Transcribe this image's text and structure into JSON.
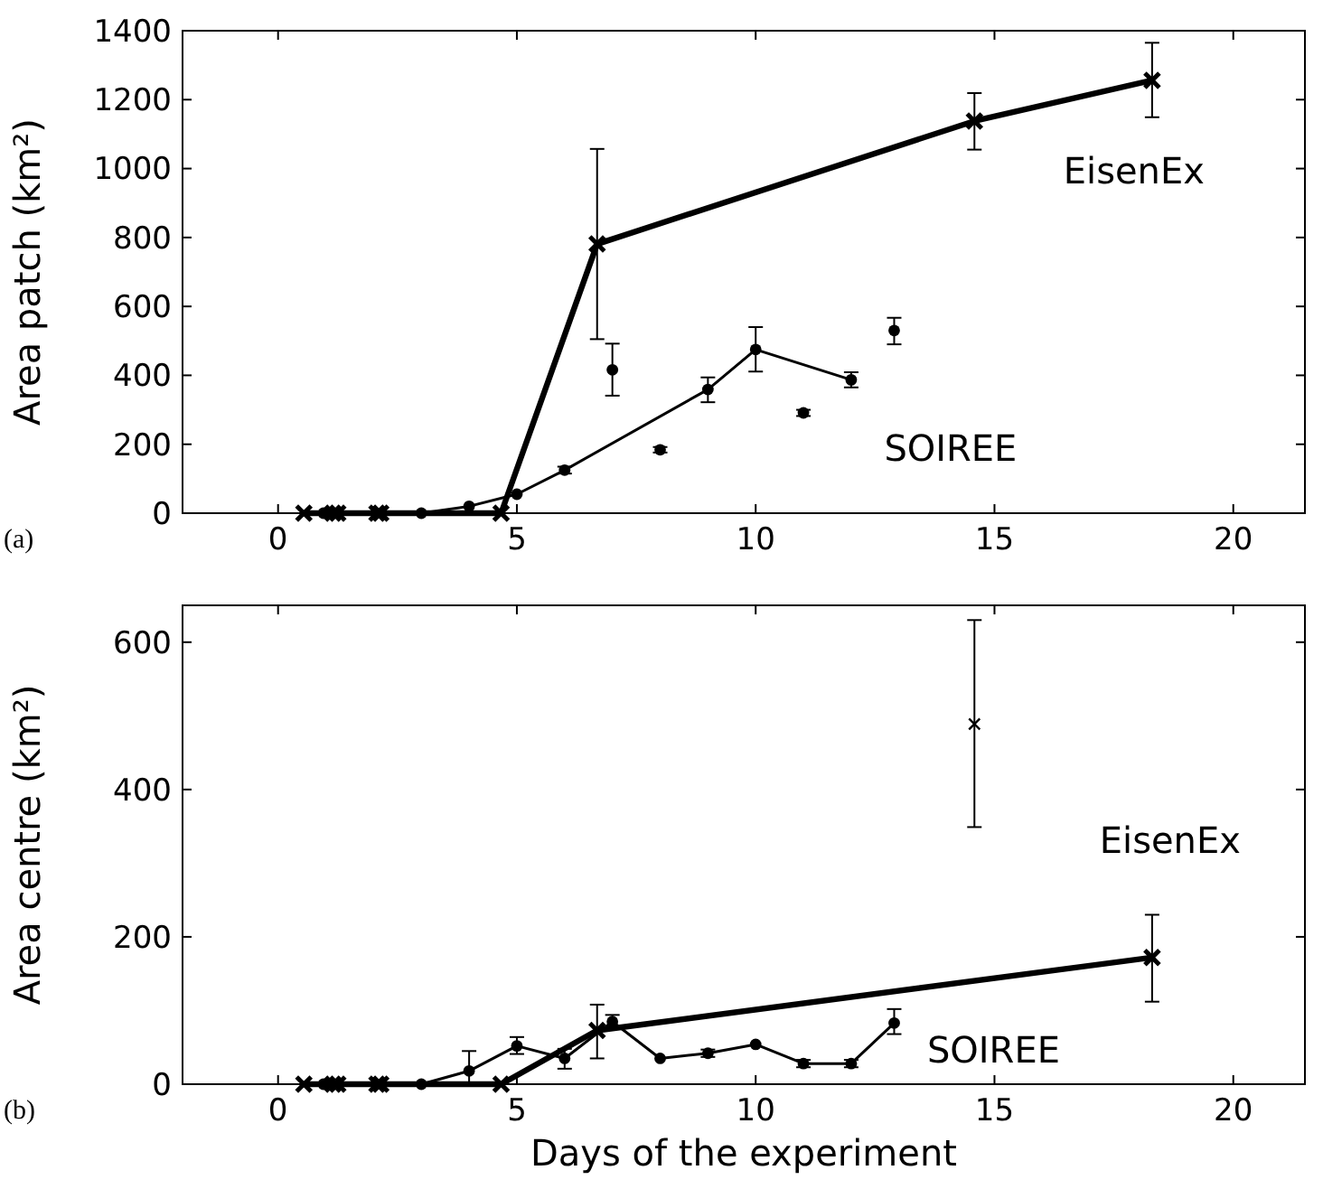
{
  "chart_data": [
    {
      "type": "line",
      "ylabel": "Area patch (km²)",
      "annotations": [
        "(a)"
      ],
      "xlim": [
        -2,
        21.5
      ],
      "xticks": [
        0,
        5,
        10,
        15,
        20
      ],
      "ylim": [
        0,
        1400
      ],
      "yticks": [
        0,
        200,
        400,
        600,
        800,
        1000,
        1200,
        1400
      ],
      "grid": false,
      "series": [
        {
          "name": "EisenEx",
          "color": "#000000",
          "marker": "cross",
          "x": [
            0.54,
            1.15,
            1.25,
            2.07,
            2.15,
            4.67,
            6.68,
            14.58,
            18.3
          ],
          "values": [
            0,
            0,
            0,
            0,
            0,
            0,
            781,
            1138,
            1256
          ],
          "errors": [
            null,
            null,
            null,
            null,
            null,
            null,
            [
              505,
              1057
            ],
            [
              1055,
              1219
            ],
            [
              1149,
              1365
            ]
          ]
        },
        {
          "name": "SOIREE",
          "color": "#000000",
          "marker": "circle",
          "x": [
            0.95,
            3,
            4,
            5,
            6,
            9,
            10,
            12
          ],
          "values": [
            0,
            0,
            20,
            55,
            125,
            359,
            475,
            387
          ],
          "errors": [
            null,
            null,
            null,
            null,
            [
              115,
              135
            ],
            [
              322,
              394
            ],
            [
              411,
              540
            ],
            [
              365,
              409
            ]
          ]
        },
        {
          "type": "scatter",
          "color": "#000000",
          "marker": "circle",
          "x": [
            7,
            8,
            11,
            12.9
          ],
          "values": [
            416,
            184,
            291,
            530
          ],
          "errors": [
            [
              341,
              492
            ],
            [
              176,
              192
            ],
            [
              282,
              300
            ],
            [
              490,
              567
            ]
          ]
        }
      ]
    },
    {
      "type": "line",
      "xlabel": "Days of the experiment",
      "ylabel": "Area centre (km²)",
      "annotations": [
        "(b)"
      ],
      "xlim": [
        -2,
        21.5
      ],
      "xticks": [
        0,
        5,
        10,
        15,
        20
      ],
      "ylim": [
        0,
        650
      ],
      "yticks": [
        0,
        200,
        400,
        600
      ],
      "grid": false,
      "series": [
        {
          "name": "EisenEx",
          "color": "#000000",
          "marker": "cross",
          "x": [
            0.54,
            1.15,
            1.25,
            2.07,
            2.15,
            4.67,
            6.68,
            18.3
          ],
          "values": [
            0,
            0,
            0,
            0,
            0,
            0,
            73,
            172
          ],
          "errors": [
            null,
            null,
            null,
            null,
            null,
            null,
            [
              35,
              108
            ],
            [
              112,
              230
            ]
          ]
        },
        {
          "name": "SOIREE",
          "color": "#000000",
          "marker": "circle",
          "x": [
            0.95,
            3,
            4,
            5,
            6,
            7,
            8,
            9,
            10,
            11,
            12,
            12.9
          ],
          "values": [
            0,
            0,
            18,
            52,
            35,
            85,
            35,
            42,
            54,
            28,
            28,
            83
          ],
          "errors": [
            null,
            null,
            [
              0,
              45
            ],
            [
              41,
              64
            ],
            [
              21,
              48
            ],
            [
              75,
              94
            ],
            null,
            [
              37,
              47
            ],
            null,
            [
              23,
              33
            ],
            [
              23,
              33
            ],
            [
              68,
              102
            ]
          ]
        },
        {
          "type": "scatter",
          "color": "#000000",
          "marker": "cross",
          "x": [
            14.58
          ],
          "values": [
            489
          ],
          "errors": [
            [
              349,
              630
            ]
          ]
        }
      ]
    }
  ]
}
